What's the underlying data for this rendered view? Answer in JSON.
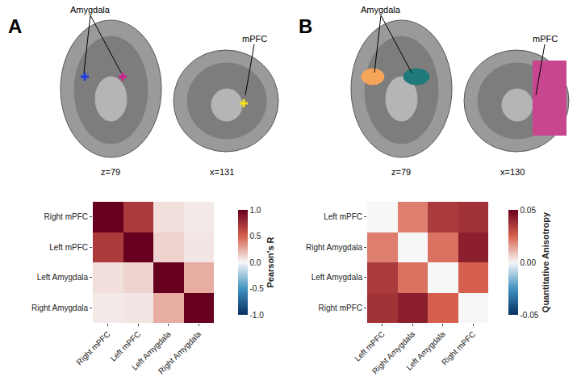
{
  "chart_data": [
    {
      "type": "heatmap",
      "annotations": {
        "panel": "A",
        "left_region": "Amygdala",
        "right_region": "mPFC",
        "axial_slice": "z=79",
        "sagittal_slice": "x=131"
      },
      "x": [
        "Right mPFC",
        "Left mPFC",
        "Left Amygdala",
        "Right Amygdala"
      ],
      "y": [
        "Right mPFC",
        "Left mPFC",
        "Left Amygdala",
        "Right Amygdala"
      ],
      "cells": [
        [
          1.0,
          0.7,
          0.08,
          0.04
        ],
        [
          0.7,
          1.0,
          0.12,
          0.06
        ],
        [
          0.08,
          0.12,
          1.0,
          0.25
        ],
        [
          0.04,
          0.06,
          0.25,
          1.0
        ]
      ],
      "color_range": [
        -1,
        1
      ],
      "color_ticks": [
        {
          "value": -1,
          "label": "-1.0"
        },
        {
          "value": -0.5,
          "label": "-0.5"
        },
        {
          "value": 0,
          "label": "0.0"
        },
        {
          "value": 0.5,
          "label": "0.5"
        },
        {
          "value": 1,
          "label": "1.0"
        }
      ],
      "colorbar_title": "Pearson's R"
    },
    {
      "type": "heatmap",
      "annotations": {
        "panel": "B",
        "left_region": "Amygdala",
        "right_region": "mPFC",
        "axial_slice": "z=79",
        "sagittal_slice": "x=130"
      },
      "x": [
        "Left mPFC",
        "Right Amygdala",
        "Left Amygdala",
        "Right mPFC"
      ],
      "y": [
        "Left mPFC",
        "Right Amygdala",
        "Left Amygdala",
        "Right mPFC"
      ],
      "cells": [
        [
          0.0,
          0.02,
          0.035,
          0.037
        ],
        [
          0.02,
          0.0,
          0.022,
          0.042
        ],
        [
          0.035,
          0.022,
          0.0,
          0.025
        ],
        [
          0.037,
          0.042,
          0.025,
          0.0
        ]
      ],
      "color_range": [
        -0.05,
        0.05
      ],
      "color_ticks": [
        -0.05,
        {
          "value": 0,
          "label": "0.00"
        },
        0.05
      ],
      "colorbar_title": "Quantitative Anisotropy"
    }
  ]
}
